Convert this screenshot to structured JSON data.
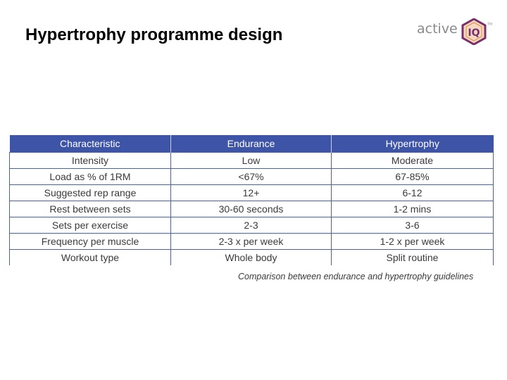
{
  "slide": {
    "title": "Hypertrophy programme design",
    "caption": "Comparison between endurance and hypertrophy guidelines"
  },
  "logo": {
    "text": "active",
    "mark": "IQ",
    "tm": "TM",
    "colors": {
      "text": "#8a8a8a",
      "badge": "#7a2f6b",
      "badge_fill": "#f3d9c4",
      "accent": "#e88c3a"
    }
  },
  "table": {
    "headers": [
      "Characteristic",
      "Endurance",
      "Hypertrophy"
    ],
    "rows": [
      [
        "Intensity",
        "Low",
        "Moderate"
      ],
      [
        "Load as % of 1RM",
        "<67%",
        "67-85%"
      ],
      [
        "Suggested rep range",
        "12+",
        "6-12"
      ],
      [
        "Rest between sets",
        "30-60 seconds",
        "1-2 mins"
      ],
      [
        "Sets per exercise",
        "2-3",
        "3-6"
      ],
      [
        "Frequency per muscle",
        "2-3 x per week",
        "1-2 x per week"
      ],
      [
        "Workout type",
        "Whole body",
        "Split routine"
      ]
    ],
    "colors": {
      "header_bg": "#3e55a7",
      "header_text": "#ffffff",
      "border": "#4a5fa8",
      "cell_text": "#3a3a3a"
    }
  }
}
